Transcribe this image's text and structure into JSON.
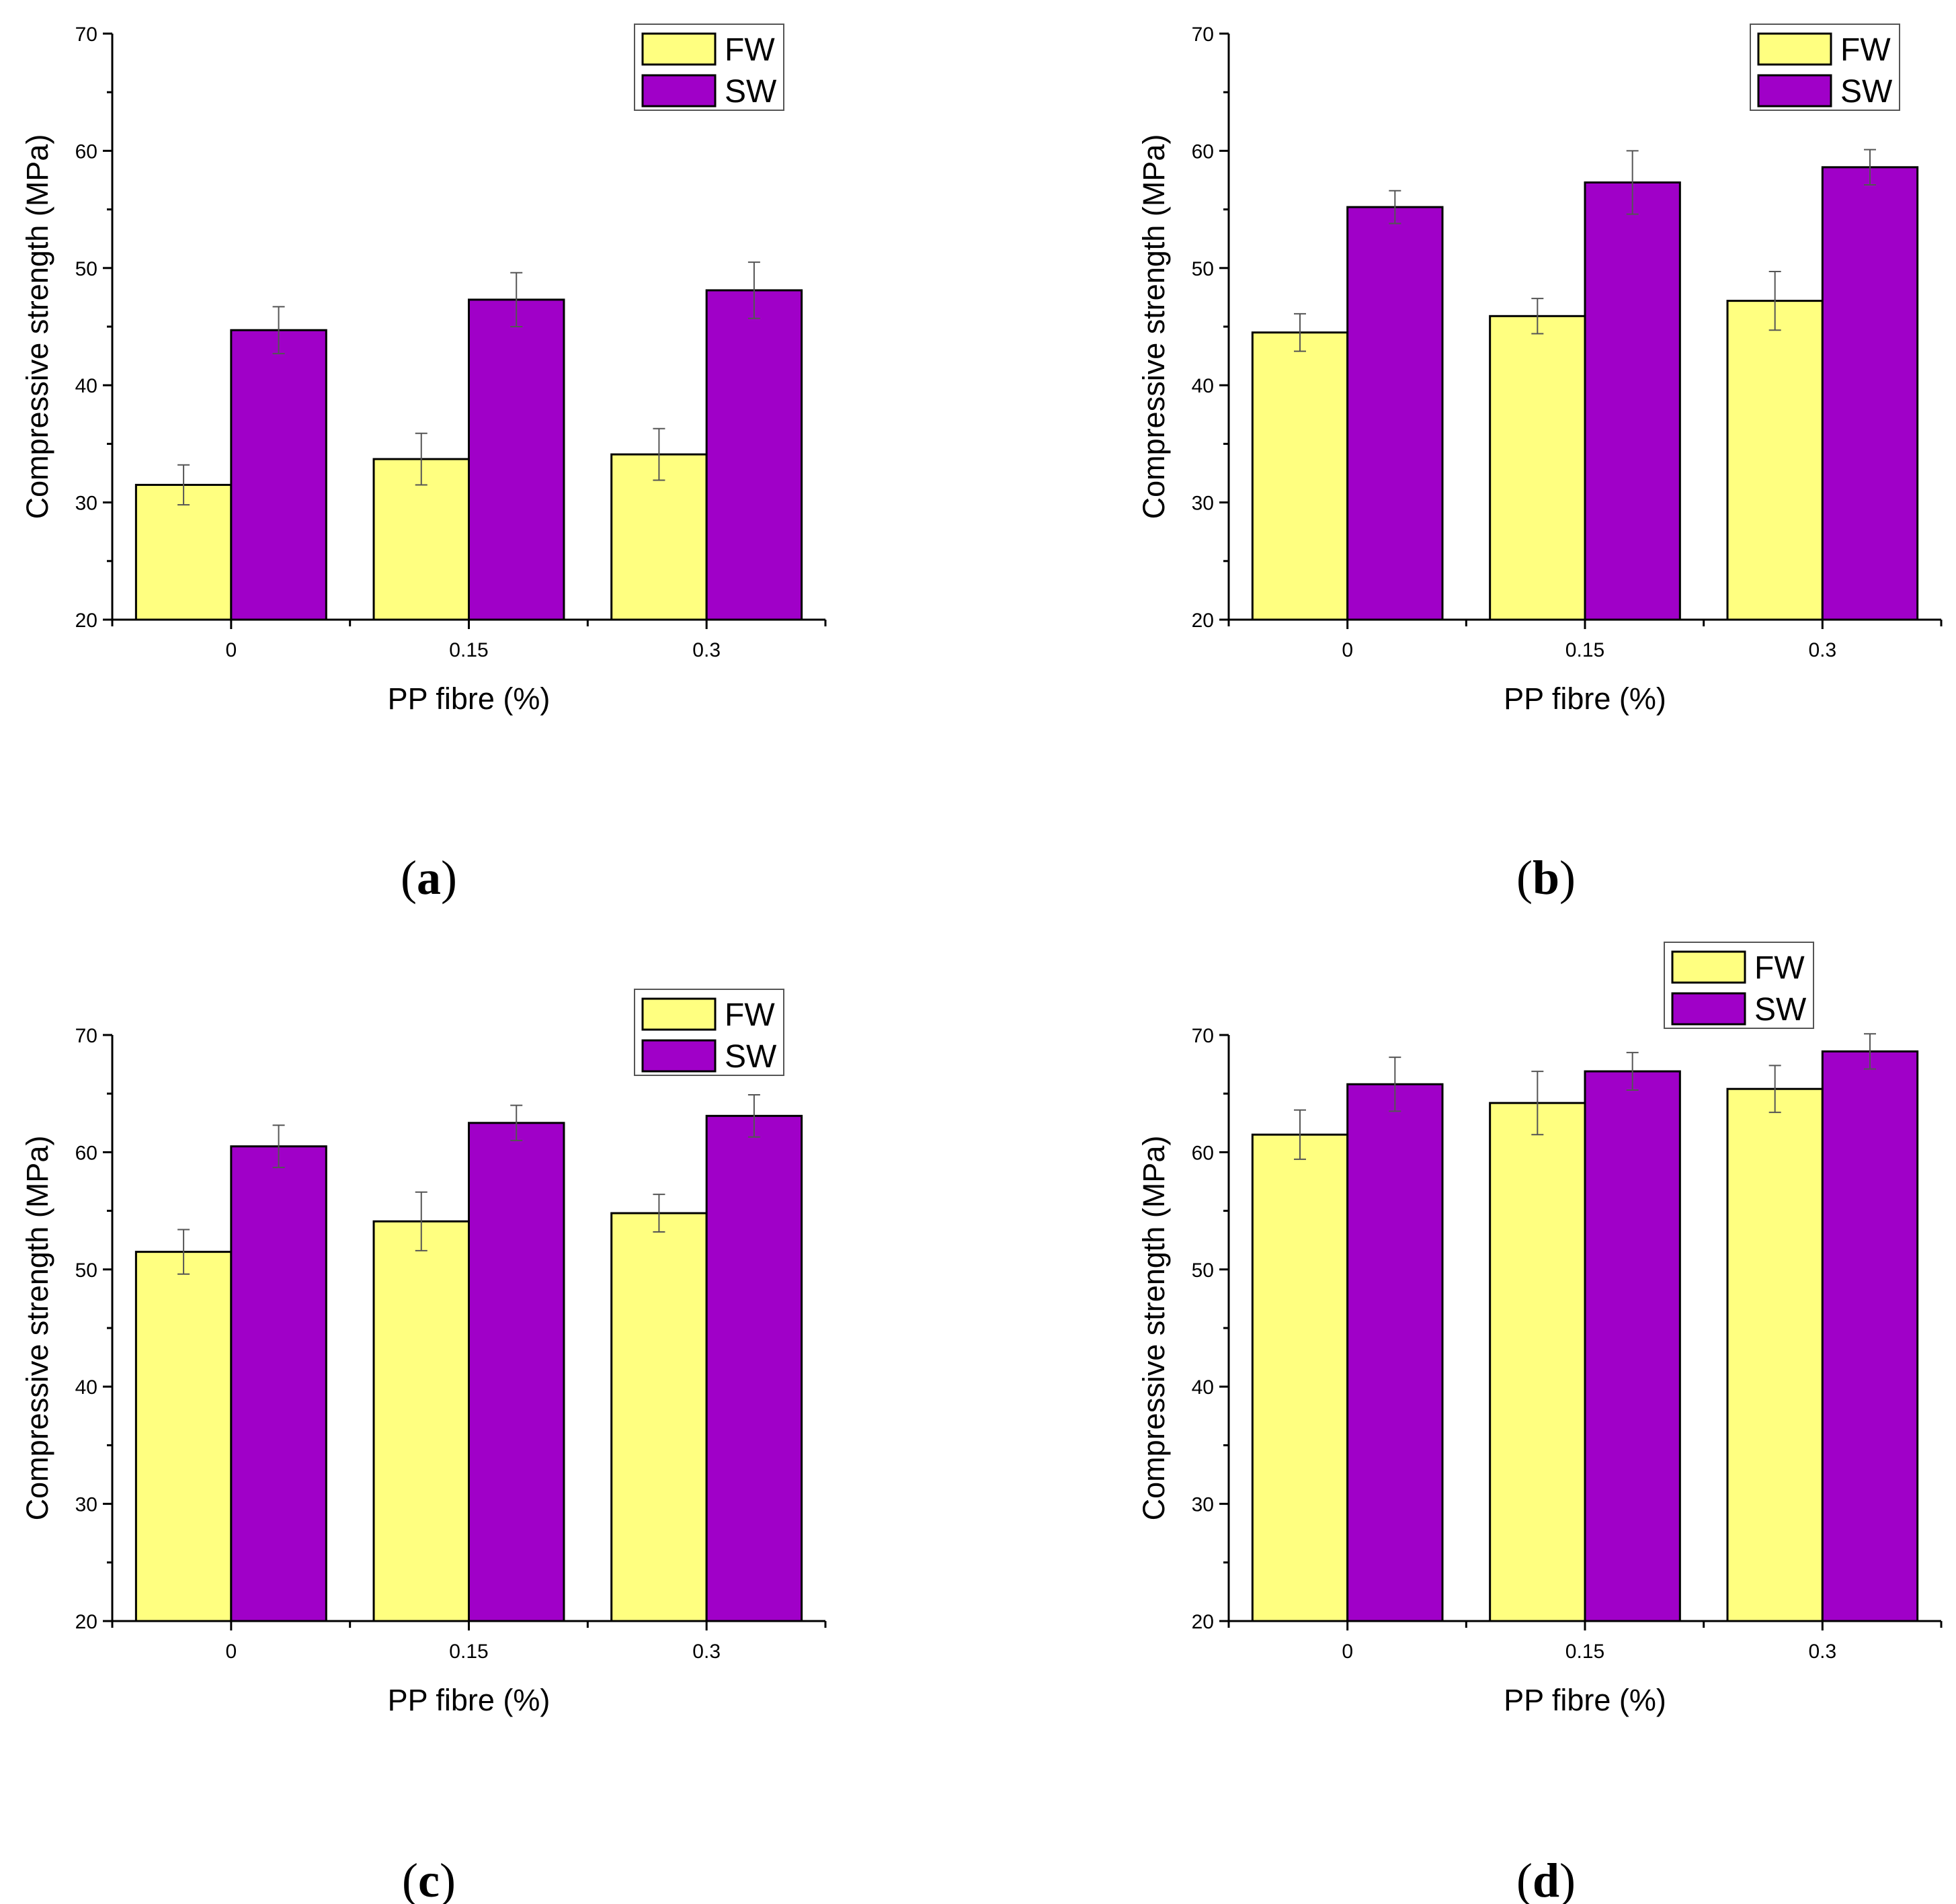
{
  "colors": {
    "FW": "#FFFF80",
    "SW": "#A000C8",
    "axis": "#000000",
    "error": "#555555"
  },
  "chart_data": [
    {
      "panel_label": "a",
      "type": "bar",
      "categories": [
        "0",
        "0.15",
        "0.3"
      ],
      "xlabel": "PP fibre (%)",
      "ylabel": "Compressive strength (MPa)",
      "ylim": [
        20,
        70
      ],
      "yticks": [
        "20",
        "30",
        "40",
        "50",
        "60",
        "70"
      ],
      "legend": "top-right",
      "series": [
        {
          "name": "FW",
          "values": [
            31.5,
            33.7,
            34.1
          ],
          "errors": [
            1.7,
            2.2,
            2.2
          ]
        },
        {
          "name": "SW",
          "values": [
            44.7,
            47.3,
            48.1
          ],
          "errors": [
            2.0,
            2.3,
            2.4
          ]
        }
      ]
    },
    {
      "panel_label": "b",
      "type": "bar",
      "categories": [
        "0",
        "0.15",
        "0.3"
      ],
      "xlabel": "PP fibre (%)",
      "ylabel": "Compressive strength (MPa)",
      "ylim": [
        20,
        70
      ],
      "yticks": [
        "20",
        "30",
        "40",
        "50",
        "60",
        "70"
      ],
      "legend": "top-right",
      "series": [
        {
          "name": "FW",
          "values": [
            44.5,
            45.9,
            47.2
          ],
          "errors": [
            1.6,
            1.5,
            2.5
          ]
        },
        {
          "name": "SW",
          "values": [
            55.2,
            57.3,
            58.6
          ],
          "errors": [
            1.4,
            2.7,
            1.5
          ]
        }
      ]
    },
    {
      "panel_label": "c",
      "type": "bar",
      "categories": [
        "0",
        "0.15",
        "0.3"
      ],
      "xlabel": "PP fibre (%)",
      "ylabel": "Compressive strength (MPa)",
      "ylim": [
        20,
        70
      ],
      "yticks": [
        "20",
        "30",
        "40",
        "50",
        "60",
        "70"
      ],
      "legend": "top-right",
      "series": [
        {
          "name": "FW",
          "values": [
            51.5,
            54.1,
            54.8
          ],
          "errors": [
            1.9,
            2.5,
            1.6
          ]
        },
        {
          "name": "SW",
          "values": [
            60.5,
            62.5,
            63.1
          ],
          "errors": [
            1.8,
            1.5,
            1.8
          ]
        }
      ]
    },
    {
      "panel_label": "d",
      "type": "bar",
      "categories": [
        "0",
        "0.15",
        "0.3"
      ],
      "xlabel": "PP fibre (%)",
      "ylabel": "Compressive strength (MPa)",
      "ylim": [
        20,
        70
      ],
      "yticks": [
        "20",
        "30",
        "40",
        "50",
        "60",
        "70"
      ],
      "legend": "top-right",
      "series": [
        {
          "name": "FW",
          "values": [
            61.5,
            64.2,
            65.4
          ],
          "errors": [
            2.1,
            2.7,
            2.0
          ]
        },
        {
          "name": "SW",
          "values": [
            65.8,
            66.9,
            68.6
          ],
          "errors": [
            2.3,
            1.6,
            1.5
          ]
        }
      ]
    }
  ]
}
